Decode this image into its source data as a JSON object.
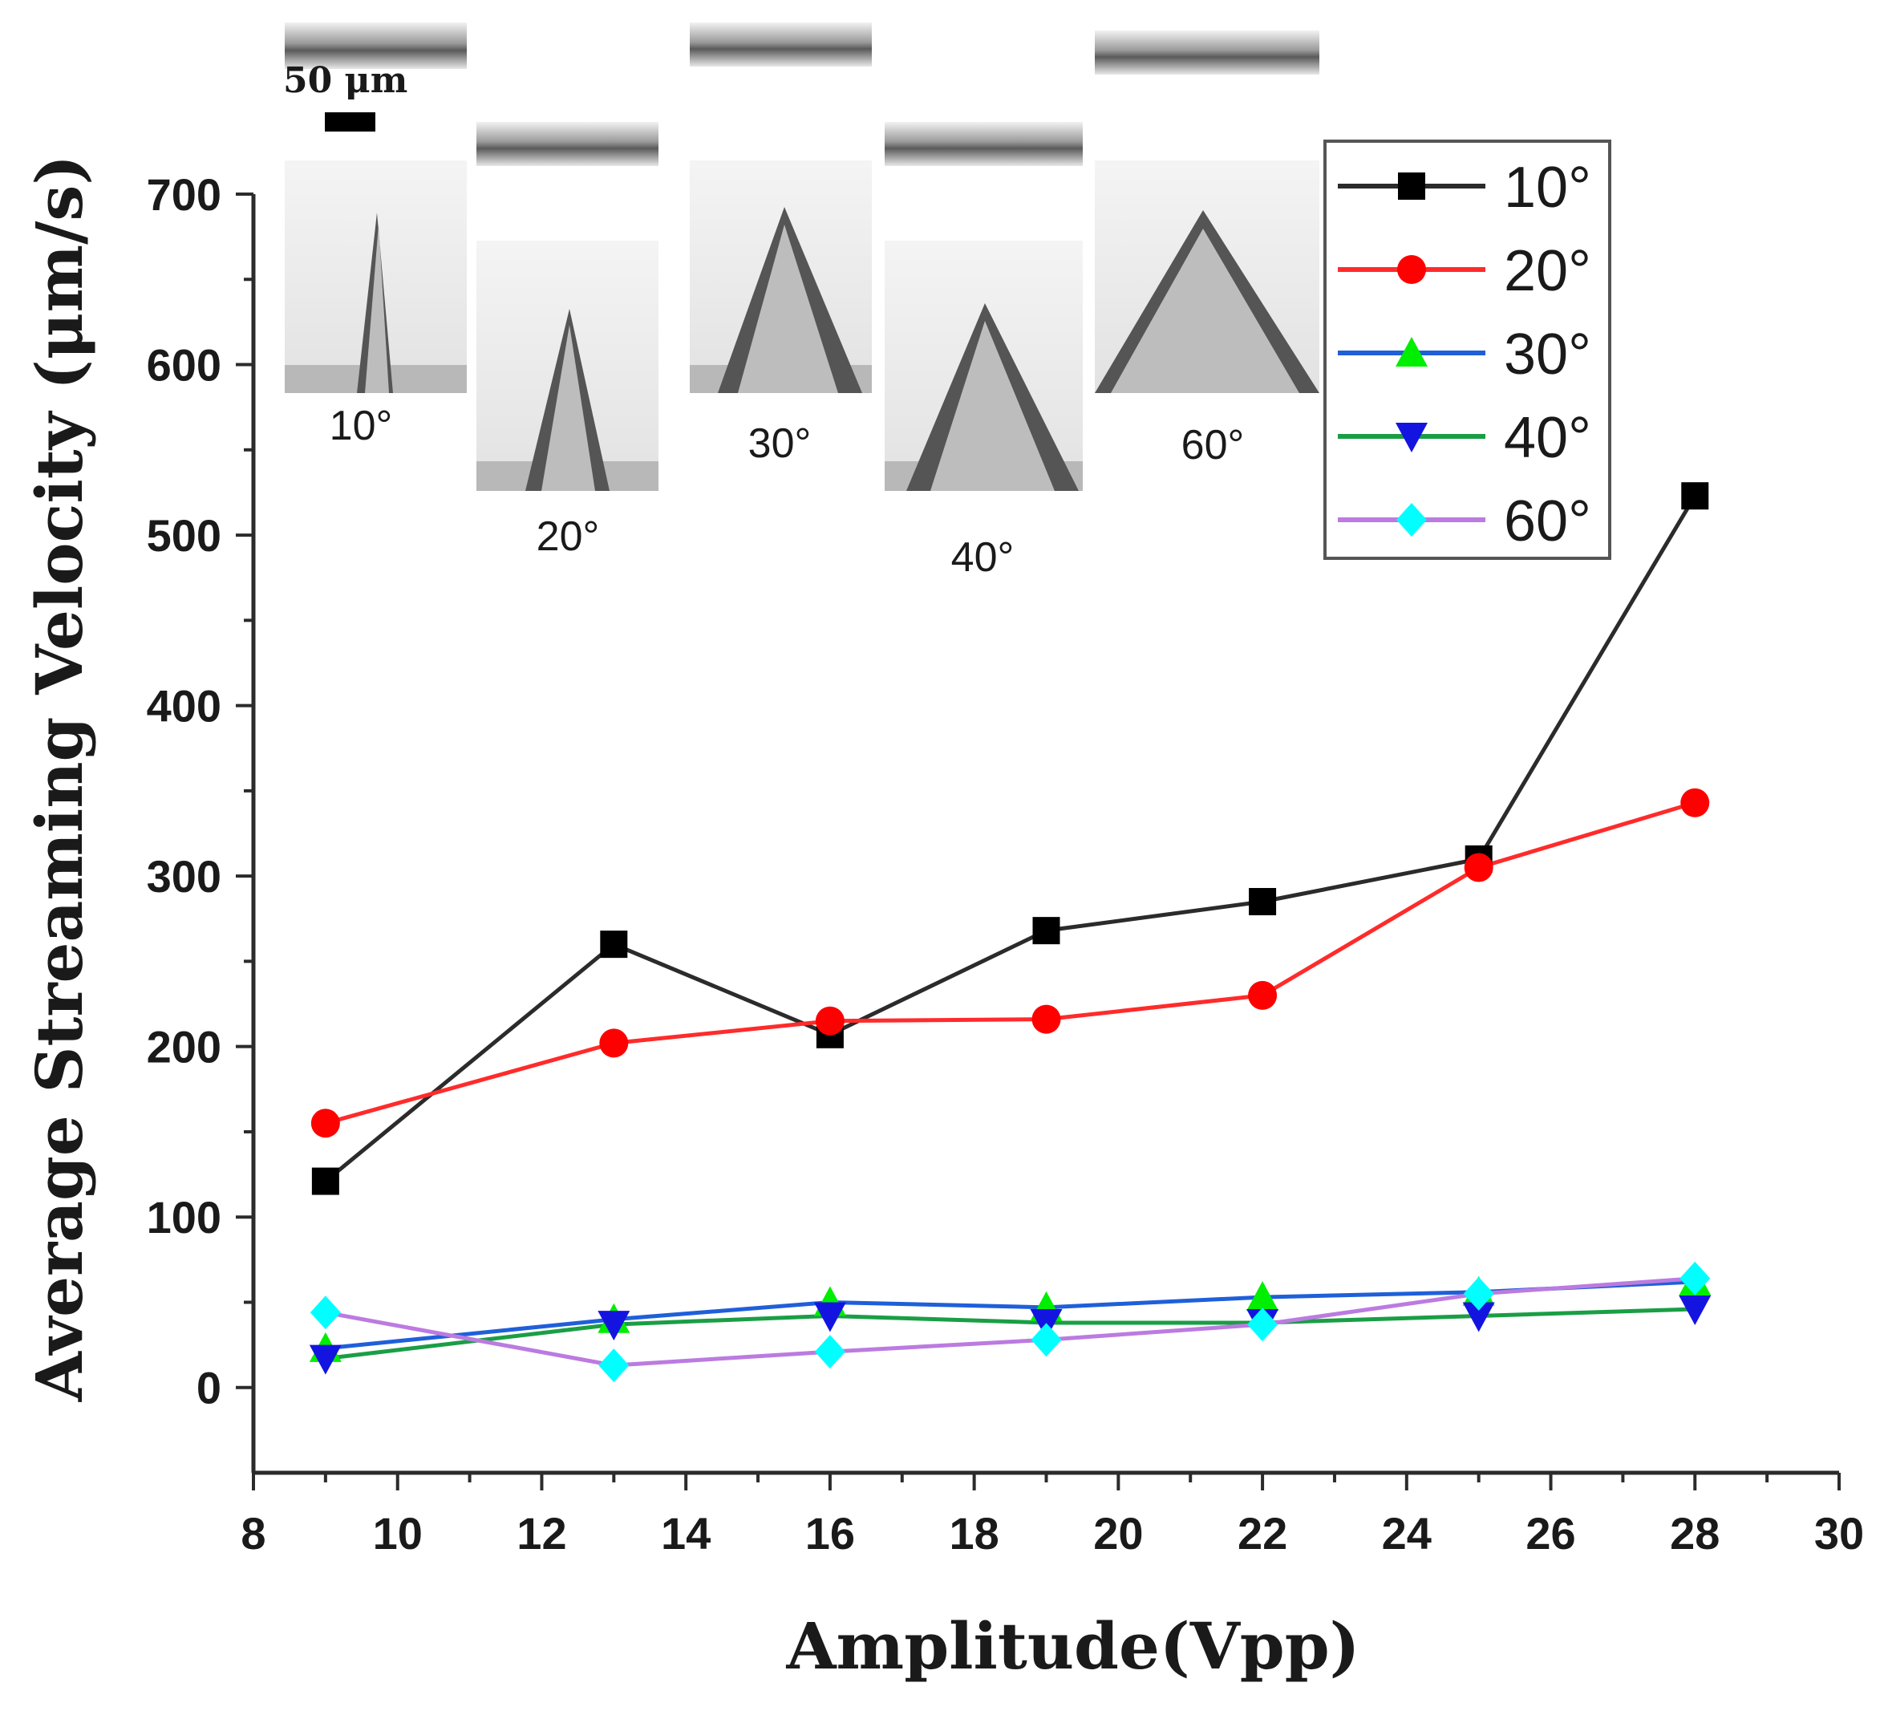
{
  "chart_data": {
    "type": "line",
    "xlabel": "Amplitude(Vpp)",
    "ylabel": "Average Streaming Velocity (μm/s)",
    "xlim": [
      8,
      30
    ],
    "ylim": [
      -50,
      700
    ],
    "xticks": [
      "8",
      "10",
      "12",
      "14",
      "16",
      "18",
      "20",
      "22",
      "24",
      "26",
      "28",
      "30"
    ],
    "yticks": [
      "0",
      "100",
      "200",
      "300",
      "400",
      "500",
      "600",
      "700"
    ],
    "x": [
      9,
      13,
      16,
      19,
      22,
      25,
      28
    ],
    "series": [
      {
        "name": "10°",
        "color": "#2b2b2b",
        "marker": "square",
        "markerColor": "#000000",
        "values": [
          121,
          260,
          207,
          268,
          285,
          310,
          523
        ]
      },
      {
        "name": "20°",
        "color": "#ff2b2b",
        "marker": "circle",
        "markerColor": "#ff0000",
        "values": [
          155,
          202,
          215,
          216,
          230,
          305,
          343
        ]
      },
      {
        "name": "30°",
        "color": "#1f5fd9",
        "marker": "triangle-up",
        "markerColor": "#00ee00",
        "values": [
          23,
          40,
          50,
          47,
          53,
          56,
          62
        ]
      },
      {
        "name": "40°",
        "color": "#1a9e45",
        "marker": "triangle-down",
        "markerColor": "#1414e0",
        "values": [
          17,
          37,
          42,
          38,
          38,
          42,
          46
        ]
      },
      {
        "name": "60°",
        "color": "#bb7be0",
        "marker": "diamond",
        "markerColor": "#00ffff",
        "values": [
          44,
          13,
          21,
          28,
          37,
          55,
          64
        ]
      }
    ],
    "legend_position": "top-right",
    "grid": false
  },
  "insets": {
    "scale_bar": "50 μm",
    "labels": [
      "10°",
      "20°",
      "30°",
      "40°",
      "60°"
    ]
  }
}
